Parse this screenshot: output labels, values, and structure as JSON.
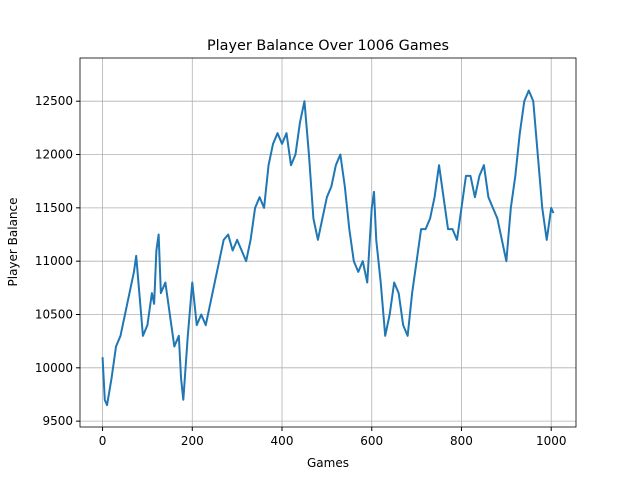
{
  "chart_data": {
    "type": "line",
    "title": "Player Balance Over 1006 Games",
    "x_label": "Games",
    "y_label": "Player Balance",
    "x": [
      0,
      5,
      10,
      20,
      30,
      40,
      50,
      60,
      70,
      75,
      80,
      90,
      100,
      110,
      115,
      120,
      125,
      130,
      140,
      150,
      160,
      170,
      175,
      180,
      190,
      200,
      210,
      220,
      230,
      240,
      250,
      260,
      270,
      280,
      290,
      300,
      310,
      320,
      330,
      340,
      350,
      360,
      370,
      380,
      390,
      400,
      410,
      420,
      430,
      440,
      450,
      460,
      470,
      480,
      490,
      500,
      510,
      520,
      530,
      540,
      550,
      560,
      570,
      580,
      590,
      600,
      605,
      610,
      620,
      630,
      640,
      650,
      660,
      670,
      680,
      690,
      700,
      710,
      720,
      730,
      740,
      750,
      760,
      770,
      780,
      790,
      800,
      810,
      820,
      830,
      840,
      850,
      860,
      870,
      880,
      890,
      900,
      910,
      920,
      930,
      940,
      950,
      960,
      970,
      980,
      990,
      1000,
      1005
    ],
    "series": [
      {
        "name": "Player Balance",
        "color": "#1f77b4",
        "values": [
          10100,
          9700,
          9650,
          9900,
          10200,
          10300,
          10500,
          10700,
          10900,
          11050,
          10800,
          10300,
          10400,
          10700,
          10600,
          11100,
          11250,
          10700,
          10800,
          10500,
          10200,
          10300,
          9900,
          9700,
          10300,
          10800,
          10400,
          10500,
          10400,
          10600,
          10800,
          11000,
          11200,
          11250,
          11100,
          11200,
          11100,
          11000,
          11200,
          11500,
          11600,
          11500,
          11900,
          12100,
          12200,
          12100,
          12200,
          11900,
          12000,
          12300,
          12500,
          12000,
          11400,
          11200,
          11400,
          11600,
          11700,
          11900,
          12000,
          11700,
          11300,
          11000,
          10900,
          11000,
          10800,
          11500,
          11650,
          11200,
          10800,
          10300,
          10500,
          10800,
          10700,
          10400,
          10300,
          10700,
          11000,
          11300,
          11300,
          11400,
          11600,
          11900,
          11600,
          11300,
          11300,
          11200,
          11500,
          11800,
          11800,
          11600,
          11800,
          11900,
          11600,
          11500,
          11400,
          11200,
          11000,
          11500,
          11800,
          12200,
          12500,
          12600,
          12500,
          12000,
          11500,
          11200,
          11500,
          11450
        ]
      }
    ],
    "xlim": [
      -50.25,
      1055.25
    ],
    "ylim": [
      9445,
      12905
    ],
    "xticks": [
      0,
      200,
      400,
      600,
      800,
      1000
    ],
    "yticks": [
      9500,
      10000,
      10500,
      11000,
      11500,
      12000,
      12500
    ],
    "grid": true
  }
}
